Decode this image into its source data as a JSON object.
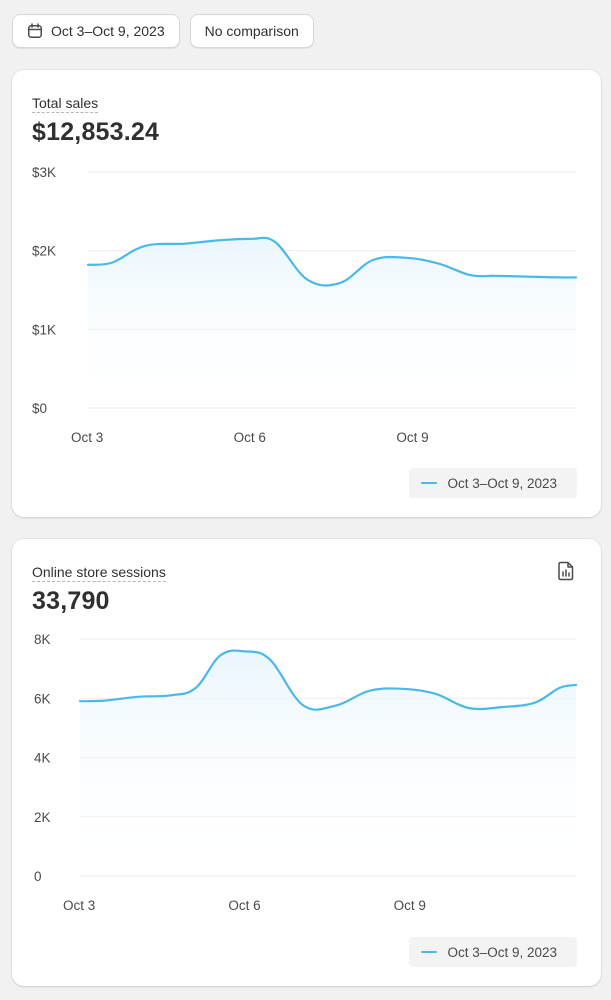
{
  "toolbar": {
    "date_range_label": "Oct 3–Oct 9, 2023",
    "comparison_label": "No comparison",
    "calendar_icon": "calendar-icon"
  },
  "colors": {
    "line": "#4bb8ea",
    "area": "#eaf6fd",
    "grid": "#ebebeb"
  },
  "cards": {
    "sales": {
      "title": "Total sales",
      "value": "$12,853.24",
      "legend": "Oct 3–Oct 9, 2023"
    },
    "sessions": {
      "title": "Online store sessions",
      "value": "33,790",
      "legend": "Oct 3–Oct 9, 2023",
      "report_icon": "report-icon"
    }
  },
  "chart_data": [
    {
      "type": "line",
      "title": "Total sales",
      "ylim": [
        0,
        3000
      ],
      "yticks": [
        0,
        1000,
        2000,
        3000
      ],
      "ytick_labels": [
        "$0",
        "$1K",
        "$2K",
        "$3K"
      ],
      "xlim": [
        0,
        6
      ],
      "xticks": [
        0,
        2,
        4
      ],
      "xtick_labels": [
        "Oct 3",
        "Oct 6",
        "Oct 9"
      ],
      "grid": true,
      "legend_position": "bottom-right",
      "series": [
        {
          "name": "Oct 3–Oct 9, 2023",
          "x": [
            0,
            0.3,
            0.7,
            1.2,
            1.6,
            2.0,
            2.3,
            2.7,
            3.1,
            3.5,
            3.9,
            4.3,
            4.7,
            5.0,
            5.4,
            5.8,
            6.0
          ],
          "y": [
            1820,
            1850,
            2060,
            2090,
            2130,
            2150,
            2110,
            1630,
            1590,
            1880,
            1910,
            1840,
            1690,
            1680,
            1670,
            1660,
            1660
          ]
        }
      ]
    },
    {
      "type": "line",
      "title": "Online store sessions",
      "ylim": [
        0,
        8000
      ],
      "yticks": [
        0,
        2000,
        4000,
        6000,
        8000
      ],
      "ytick_labels": [
        "0",
        "2K",
        "4K",
        "6K",
        "8K"
      ],
      "xlim": [
        0,
        6
      ],
      "xticks": [
        0,
        2,
        4
      ],
      "xtick_labels": [
        "Oct 3",
        "Oct 6",
        "Oct 9"
      ],
      "grid": true,
      "legend_position": "bottom-right",
      "series": [
        {
          "name": "Oct 3–Oct 9, 2023",
          "x": [
            0,
            0.3,
            0.7,
            1.1,
            1.4,
            1.7,
            2.0,
            2.3,
            2.7,
            3.1,
            3.5,
            3.9,
            4.3,
            4.7,
            5.1,
            5.5,
            5.8,
            6.0
          ],
          "y": [
            5900,
            5920,
            6050,
            6100,
            6350,
            7450,
            7580,
            7300,
            5760,
            5760,
            6250,
            6320,
            6150,
            5670,
            5700,
            5850,
            6350,
            6450
          ]
        }
      ]
    }
  ]
}
